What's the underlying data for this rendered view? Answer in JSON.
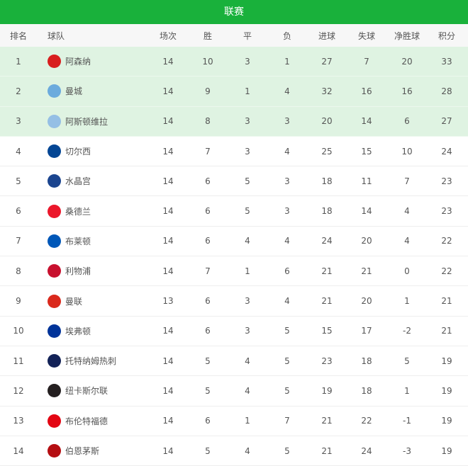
{
  "title": "联赛",
  "columns": [
    "排名",
    "球队",
    "场次",
    "胜",
    "平",
    "负",
    "进球",
    "失球",
    "净胜球",
    "积分"
  ],
  "highlight_color": "#dff3e2",
  "rows": [
    {
      "rank": "1",
      "team": "阿森纳",
      "logo": "arsenal-crest",
      "color": "#d81e1e",
      "p": "14",
      "w": "10",
      "d": "3",
      "l": "1",
      "gf": "27",
      "ga": "7",
      "gd": "20",
      "pts": "33"
    },
    {
      "rank": "2",
      "team": "曼城",
      "logo": "man-city-crest",
      "color": "#6cabdd",
      "p": "14",
      "w": "9",
      "d": "1",
      "l": "4",
      "gf": "32",
      "ga": "16",
      "gd": "16",
      "pts": "28"
    },
    {
      "rank": "3",
      "team": "阿斯顿维拉",
      "logo": "aston-villa-crest",
      "color": "#95bfe5",
      "p": "14",
      "w": "8",
      "d": "3",
      "l": "3",
      "gf": "20",
      "ga": "14",
      "gd": "6",
      "pts": "27"
    },
    {
      "rank": "4",
      "team": "切尔西",
      "logo": "chelsea-crest",
      "color": "#034694",
      "p": "14",
      "w": "7",
      "d": "3",
      "l": "4",
      "gf": "25",
      "ga": "15",
      "gd": "10",
      "pts": "24"
    },
    {
      "rank": "5",
      "team": "水晶宫",
      "logo": "crystal-palace-crest",
      "color": "#1b458f",
      "p": "14",
      "w": "6",
      "d": "5",
      "l": "3",
      "gf": "18",
      "ga": "11",
      "gd": "7",
      "pts": "23"
    },
    {
      "rank": "6",
      "team": "桑德兰",
      "logo": "sunderland-crest",
      "color": "#eb172b",
      "p": "14",
      "w": "6",
      "d": "5",
      "l": "3",
      "gf": "18",
      "ga": "14",
      "gd": "4",
      "pts": "23"
    },
    {
      "rank": "7",
      "team": "布莱顿",
      "logo": "brighton-crest",
      "color": "#0057b8",
      "p": "14",
      "w": "6",
      "d": "4",
      "l": "4",
      "gf": "24",
      "ga": "20",
      "gd": "4",
      "pts": "22"
    },
    {
      "rank": "8",
      "team": "利物浦",
      "logo": "liverpool-crest",
      "color": "#c8102e",
      "p": "14",
      "w": "7",
      "d": "1",
      "l": "6",
      "gf": "21",
      "ga": "21",
      "gd": "0",
      "pts": "22"
    },
    {
      "rank": "9",
      "team": "曼联",
      "logo": "man-united-crest",
      "color": "#da291c",
      "p": "13",
      "w": "6",
      "d": "3",
      "l": "4",
      "gf": "21",
      "ga": "20",
      "gd": "1",
      "pts": "21"
    },
    {
      "rank": "10",
      "team": "埃弗顿",
      "logo": "everton-crest",
      "color": "#003399",
      "p": "14",
      "w": "6",
      "d": "3",
      "l": "5",
      "gf": "15",
      "ga": "17",
      "gd": "-2",
      "pts": "21"
    },
    {
      "rank": "11",
      "team": "托特纳姆热刺",
      "logo": "tottenham-crest",
      "color": "#132257",
      "p": "14",
      "w": "5",
      "d": "4",
      "l": "5",
      "gf": "23",
      "ga": "18",
      "gd": "5",
      "pts": "19"
    },
    {
      "rank": "12",
      "team": "纽卡斯尔联",
      "logo": "newcastle-crest",
      "color": "#241f20",
      "p": "14",
      "w": "5",
      "d": "4",
      "l": "5",
      "gf": "19",
      "ga": "18",
      "gd": "1",
      "pts": "19"
    },
    {
      "rank": "13",
      "team": "布伦特福德",
      "logo": "brentford-crest",
      "color": "#e30613",
      "p": "14",
      "w": "6",
      "d": "1",
      "l": "7",
      "gf": "21",
      "ga": "22",
      "gd": "-1",
      "pts": "19"
    },
    {
      "rank": "14",
      "team": "伯恩茅斯",
      "logo": "bournemouth-crest",
      "color": "#b50e12",
      "p": "14",
      "w": "5",
      "d": "4",
      "l": "5",
      "gf": "21",
      "ga": "24",
      "gd": "-3",
      "pts": "19"
    }
  ]
}
